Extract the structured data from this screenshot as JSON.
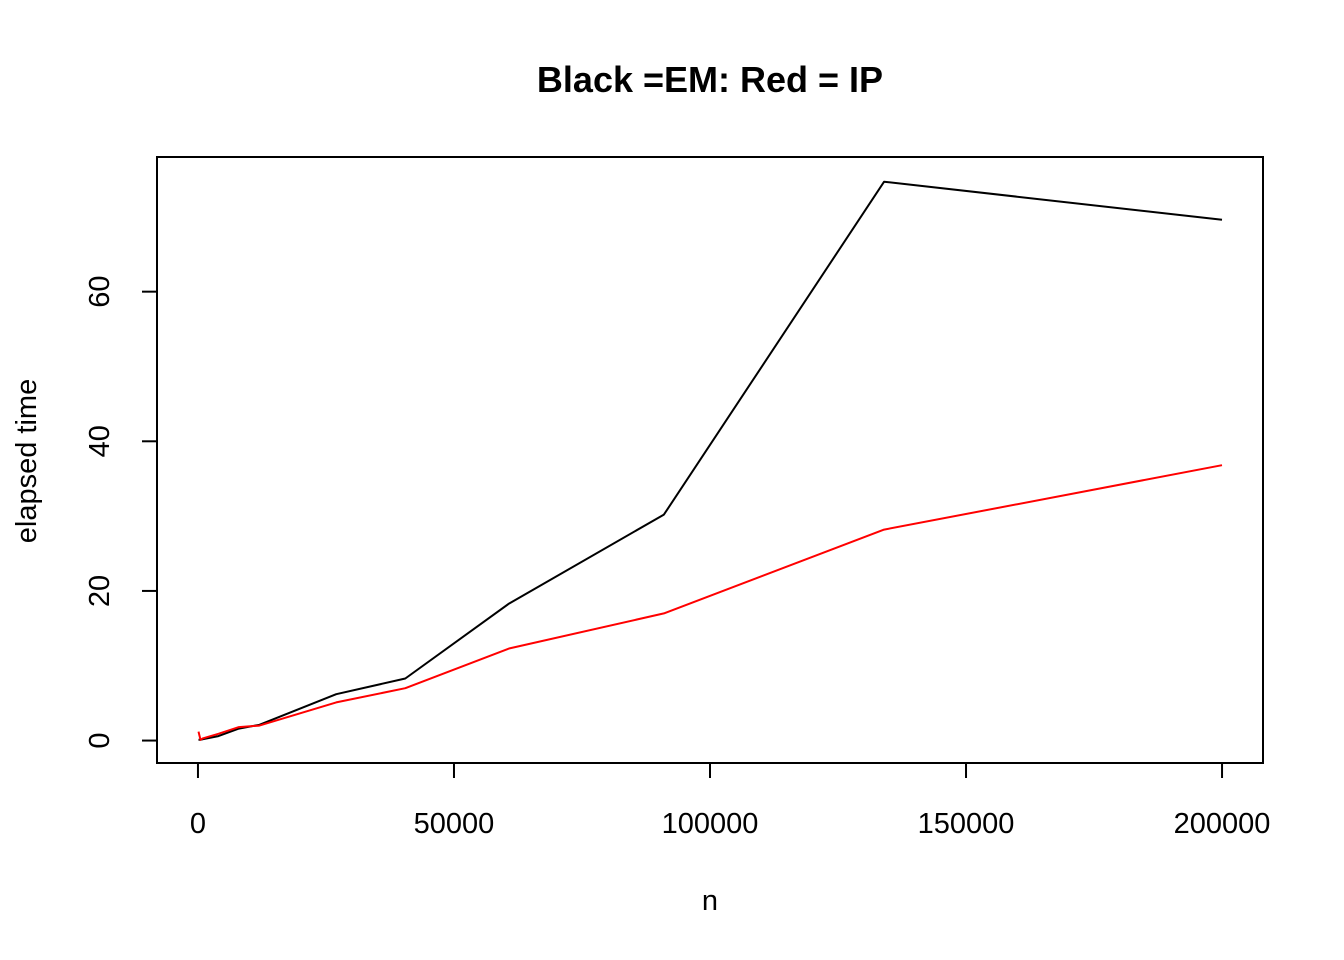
{
  "chart_data": {
    "type": "line",
    "title": "Black =EM: Red = IP",
    "xlabel": "n",
    "ylabel": "elapsed time",
    "xlim": [
      -8000,
      208000
    ],
    "ylim": [
      -3,
      78
    ],
    "x_ticks": [
      0,
      50000,
      100000,
      150000,
      200000
    ],
    "x_tick_labels": [
      "0",
      "50000",
      "100000",
      "150000",
      "200000"
    ],
    "y_ticks": [
      0,
      20,
      40,
      60
    ],
    "y_tick_labels": [
      "0",
      "20",
      "40",
      "60"
    ],
    "grid": false,
    "series": [
      {
        "color": "#000000",
        "x": [
          100,
          500,
          1000,
          4000,
          8000,
          12000,
          27000,
          40500,
          60750,
          91000,
          134000,
          200000
        ],
        "y": [
          0.1,
          0.1,
          0.2,
          0.6,
          1.6,
          2.1,
          6.2,
          8.3,
          18.3,
          30.2,
          74.7,
          69.6
        ]
      },
      {
        "color": "#ff0000",
        "x": [
          100,
          500,
          1000,
          4000,
          8000,
          12000,
          27000,
          40500,
          60750,
          91000,
          134000,
          200000
        ],
        "y": [
          1.2,
          0.1,
          0.3,
          0.9,
          1.8,
          2.0,
          5.1,
          7.0,
          12.3,
          17.0,
          28.2,
          36.8
        ]
      }
    ]
  }
}
